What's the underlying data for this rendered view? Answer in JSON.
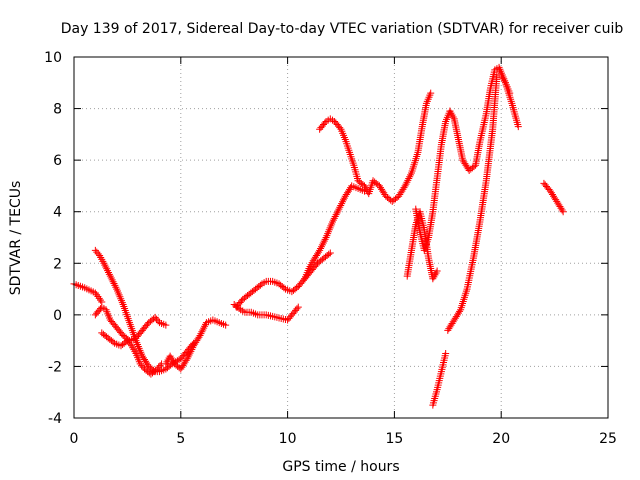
{
  "chart_data": {
    "type": "scatter",
    "title": "Day 139 of 2017, Sidereal Day-to-day VTEC variation (SDTVAR) for receiver cuib",
    "xlabel": "GPS time / hours",
    "ylabel": "SDTVAR / TECUs",
    "xlim": [
      0,
      25
    ],
    "ylim": [
      -4,
      10
    ],
    "xticks": [
      0,
      5,
      10,
      15,
      20,
      25
    ],
    "yticks": [
      -4,
      -2,
      0,
      2,
      4,
      6,
      8,
      10
    ],
    "xtick_labels": [
      "0",
      "5",
      "10",
      "15",
      "20",
      "25"
    ],
    "ytick_labels": [
      "-4",
      "-2",
      "0",
      "2",
      "4",
      "6",
      "8",
      "10"
    ],
    "grid": true,
    "marker": "+",
    "color": "#ff0000",
    "segments": [
      {
        "x": [
          0.0,
          0.5,
          1.0,
          1.3
        ],
        "y": [
          1.2,
          1.05,
          0.85,
          0.5
        ]
      },
      {
        "x": [
          1.0,
          1.2,
          1.4,
          1.7,
          2.0,
          2.3,
          2.6,
          2.9,
          3.2,
          3.5,
          3.8,
          4.0,
          4.3,
          4.6,
          5.0,
          5.3,
          5.6
        ],
        "y": [
          2.5,
          2.3,
          2.0,
          1.5,
          1.0,
          0.4,
          -0.3,
          -1.0,
          -1.6,
          -2.0,
          -2.2,
          -2.2,
          -2.1,
          -1.9,
          -1.7,
          -1.4,
          -1.1
        ]
      },
      {
        "x": [
          1.0,
          1.3,
          1.5,
          1.7,
          2.0,
          2.3,
          2.6,
          2.9,
          3.2,
          3.5,
          3.8,
          4.0,
          4.3
        ],
        "y": [
          0.0,
          0.3,
          0.2,
          -0.2,
          -0.5,
          -0.8,
          -1.0,
          -0.9,
          -0.6,
          -0.3,
          -0.1,
          -0.3,
          -0.4
        ]
      },
      {
        "x": [
          1.3,
          1.6,
          1.9,
          2.2,
          2.5,
          2.7,
          2.9,
          3.1,
          3.3,
          3.6,
          3.9,
          4.1
        ],
        "y": [
          -0.7,
          -0.9,
          -1.1,
          -1.2,
          -1.0,
          -1.2,
          -1.5,
          -1.9,
          -2.1,
          -2.3,
          -2.1,
          -1.9
        ]
      },
      {
        "x": [
          4.3,
          4.5,
          4.7,
          5.0,
          5.3,
          5.6,
          5.9,
          6.2,
          6.5,
          6.8,
          7.1
        ],
        "y": [
          -1.9,
          -1.6,
          -1.9,
          -2.1,
          -1.7,
          -1.2,
          -0.8,
          -0.3,
          -0.2,
          -0.3,
          -0.4
        ]
      },
      {
        "x": [
          7.5,
          7.8,
          8.0,
          8.3,
          8.6,
          9.0,
          9.5,
          10.0,
          10.5
        ],
        "y": [
          0.4,
          0.2,
          0.1,
          0.1,
          0.0,
          0.0,
          -0.1,
          -0.2,
          0.3
        ]
      },
      {
        "x": [
          7.6,
          7.9,
          8.2,
          8.5,
          8.8,
          9.0,
          9.3,
          9.6,
          9.9,
          10.2,
          10.5,
          10.8,
          11.0,
          11.2,
          11.5,
          11.8,
          12.1,
          12.4,
          12.7,
          13.0,
          13.3,
          13.6
        ],
        "y": [
          0.3,
          0.6,
          0.8,
          1.0,
          1.2,
          1.3,
          1.3,
          1.2,
          1.0,
          0.9,
          1.1,
          1.4,
          1.8,
          2.1,
          2.5,
          3.0,
          3.6,
          4.1,
          4.6,
          5.0,
          4.9,
          4.8
        ]
      },
      {
        "x": [
          10.8,
          11.1,
          11.4,
          11.7,
          12.0
        ],
        "y": [
          1.4,
          1.7,
          2.0,
          2.2,
          2.4
        ]
      },
      {
        "x": [
          11.5,
          11.8,
          12.0,
          12.2,
          12.5,
          12.7,
          12.9,
          13.1,
          13.3,
          13.6,
          13.8,
          14.0,
          14.3,
          14.6,
          14.9,
          15.2,
          15.5,
          15.8,
          16.1,
          16.3,
          16.5,
          16.7
        ],
        "y": [
          7.2,
          7.5,
          7.6,
          7.5,
          7.2,
          6.8,
          6.3,
          5.8,
          5.2,
          5.0,
          4.7,
          5.2,
          5.0,
          4.6,
          4.4,
          4.6,
          5.0,
          5.5,
          6.3,
          7.3,
          8.2,
          8.6
        ]
      },
      {
        "x": [
          15.6,
          15.8,
          16.0,
          16.2,
          16.4,
          16.6,
          16.8,
          17.0
        ],
        "y": [
          1.5,
          2.5,
          3.5,
          4.0,
          3.3,
          2.2,
          1.4,
          1.7
        ]
      },
      {
        "x": [
          16.0,
          16.2,
          16.4,
          16.6,
          16.8,
          17.0,
          17.2,
          17.4,
          17.6
        ],
        "y": [
          4.1,
          3.2,
          2.5,
          3.0,
          4.0,
          5.3,
          6.6,
          7.5,
          7.9
        ]
      },
      {
        "x": [
          17.6,
          17.8,
          18.0,
          18.2,
          18.5,
          18.8,
          19.0,
          19.3,
          19.5,
          19.7,
          19.9,
          20.2,
          20.5,
          20.8
        ],
        "y": [
          7.9,
          7.6,
          6.8,
          6.0,
          5.6,
          5.8,
          6.7,
          7.8,
          8.8,
          9.5,
          9.6,
          9.0,
          8.2,
          7.3
        ]
      },
      {
        "x": [
          16.8,
          17.0,
          17.2,
          17.4
        ],
        "y": [
          -3.5,
          -2.9,
          -2.2,
          -1.5
        ]
      },
      {
        "x": [
          17.5,
          17.8,
          18.1,
          18.4,
          18.7,
          19.0,
          19.3,
          19.6,
          19.8,
          20.0,
          20.2,
          20.4
        ],
        "y": [
          -0.6,
          -0.2,
          0.2,
          1.0,
          2.2,
          3.6,
          5.2,
          7.2,
          9.3,
          9.3,
          9.0,
          8.6
        ]
      },
      {
        "x": [
          22.0,
          22.3,
          22.6,
          22.9
        ],
        "y": [
          5.1,
          4.8,
          4.4,
          4.0
        ]
      }
    ]
  }
}
